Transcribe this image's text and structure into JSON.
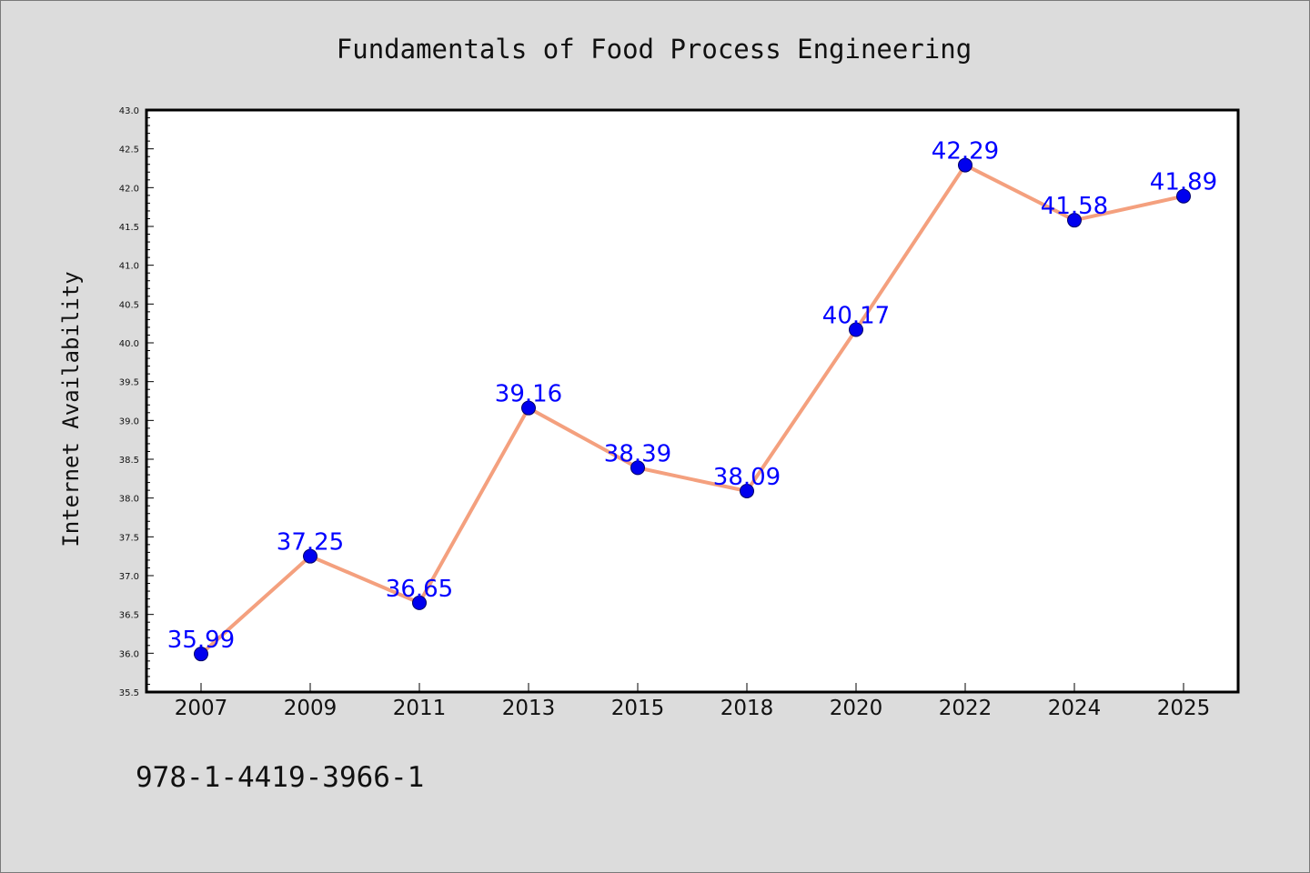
{
  "chart_data": {
    "type": "line",
    "title": "Fundamentals of Food Process Engineering",
    "ylabel": "Internet Availability",
    "xlabel": "",
    "categories": [
      "2007",
      "2009",
      "2011",
      "2013",
      "2015",
      "2018",
      "2020",
      "2022",
      "2024",
      "2025"
    ],
    "series": [
      {
        "values": [
          35.99,
          37.25,
          36.65,
          39.16,
          38.39,
          38.09,
          40.17,
          42.29,
          41.58,
          41.89
        ]
      }
    ],
    "data_labels": [
      "35.99",
      "37.25",
      "36.65",
      "39.16",
      "38.39",
      "38.09",
      "40.17",
      "42.29",
      "41.58",
      "41.89"
    ],
    "ylim": [
      35.5,
      43.0
    ],
    "y_ticks": [
      "35.5",
      "36.0",
      "36.5",
      "37.0",
      "37.5",
      "38.0",
      "38.5",
      "39.0",
      "39.5",
      "40.0",
      "40.5",
      "41.0",
      "41.5",
      "42.0",
      "42.5",
      "43.0"
    ],
    "grid": false,
    "legend": "none",
    "colors": {
      "line": "#f4a07e",
      "marker_fill": "#0000ee",
      "marker_edge": "#000066",
      "data_label": "#0000ff",
      "plot_background": "#ffffff",
      "figure_background": "#dcdcdc"
    }
  },
  "footer": {
    "isbn": "978-1-4419-3966-1"
  }
}
